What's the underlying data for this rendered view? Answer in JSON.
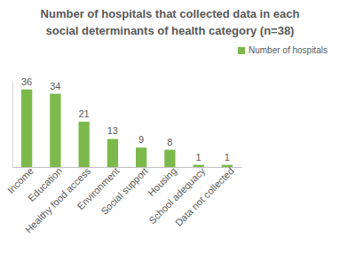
{
  "chart_data": {
    "type": "bar",
    "title": [
      "Number of hospitals that collected data in each",
      "social determinants  of health category  (n=38)"
    ],
    "categories": [
      "Income",
      "Education",
      "Healthy food access",
      "Environment",
      "Social support",
      "Housing",
      "School adequacy",
      "Data not collected"
    ],
    "series": [
      {
        "name": "Number of hospitals",
        "color": "#7cb94a",
        "values": [
          36,
          34,
          21,
          13,
          9,
          8,
          1,
          1
        ]
      }
    ],
    "ylim": [
      0,
      40
    ],
    "data_labels": true,
    "tick_labels": "x",
    "legend": "right"
  }
}
